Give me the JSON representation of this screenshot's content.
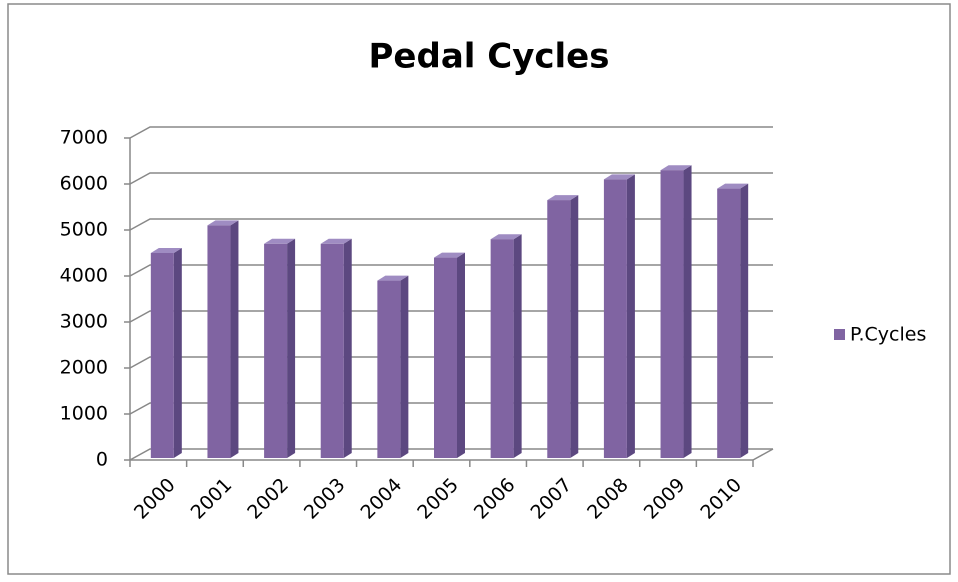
{
  "chart_data": {
    "type": "bar",
    "title": "Pedal Cycles",
    "categories": [
      "2000",
      "2001",
      "2002",
      "2003",
      "2004",
      "2005",
      "2006",
      "2007",
      "2008",
      "2009",
      "2010"
    ],
    "series": [
      {
        "name": "P.Cycles",
        "color": "#8064a2",
        "values": [
          4500,
          5100,
          4700,
          4700,
          3900,
          4400,
          4800,
          5650,
          6100,
          6300,
          5900
        ]
      }
    ],
    "ylim": [
      0,
      7000
    ],
    "yticks": [
      0,
      1000,
      2000,
      3000,
      4000,
      5000,
      6000,
      7000
    ],
    "grid": true,
    "legend": "right"
  }
}
